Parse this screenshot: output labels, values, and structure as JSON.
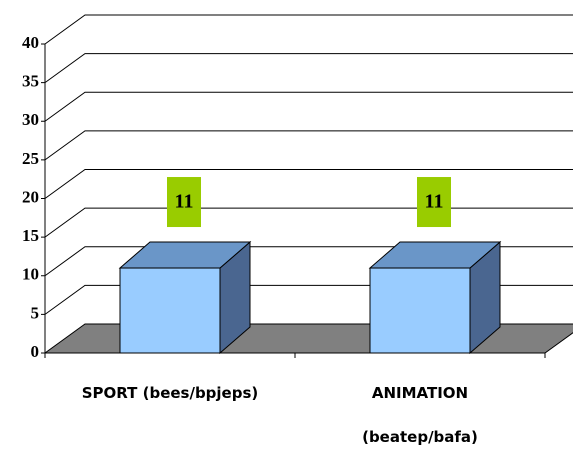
{
  "chart_data": {
    "type": "bar3d",
    "categories": [
      "SPORT (bees/bpjeps)",
      "ANIMATION\n(beatep/bafa)"
    ],
    "values": [
      11,
      11
    ],
    "color": "#99ccff",
    "label_color": "#99cc00",
    "ylim": [
      0,
      40
    ],
    "yticks": [
      0,
      5,
      10,
      15,
      20,
      25,
      30,
      35,
      40
    ],
    "grid": true
  }
}
